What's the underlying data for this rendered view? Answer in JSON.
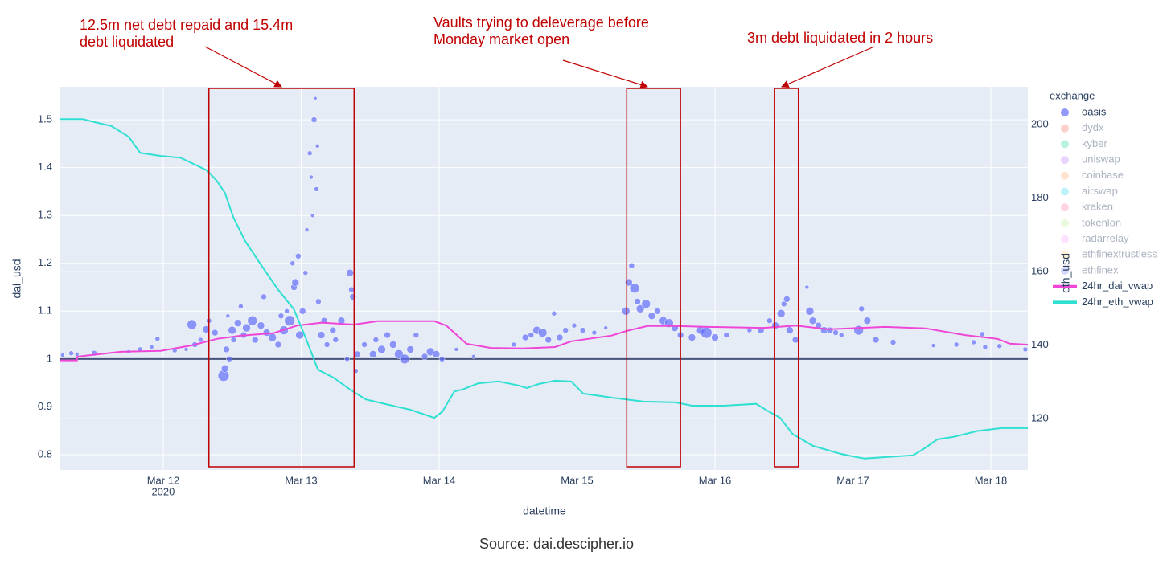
{
  "chart_data": {
    "type": "scatter",
    "x_label": "datetime",
    "y_label": "dai_usd",
    "y2_label": "eth_usd",
    "legend_title": "exchange",
    "legend_position": "right",
    "source": "Source: dai.descipher.io",
    "x_axis_year": "2020",
    "grid": true,
    "background": "#e5ecf6",
    "xlim": [
      "2020-03-11T06:06",
      "2020-03-18T06:26"
    ],
    "xticks": [
      {
        "value": "2020-03-12T00:00",
        "label": "Mar 12"
      },
      {
        "value": "2020-03-13T00:00",
        "label": "Mar 13"
      },
      {
        "value": "2020-03-14T00:00",
        "label": "Mar 14"
      },
      {
        "value": "2020-03-15T00:00",
        "label": "Mar 15"
      },
      {
        "value": "2020-03-16T00:00",
        "label": "Mar 16"
      },
      {
        "value": "2020-03-17T00:00",
        "label": "Mar 17"
      },
      {
        "value": "2020-03-18T00:00",
        "label": "Mar 18"
      }
    ],
    "ylim": [
      0.768,
      1.569
    ],
    "yticks": [
      0.8,
      0.9,
      1,
      1.1,
      1.2,
      1.3,
      1.4,
      1.5
    ],
    "y2lim": [
      106,
      210.3
    ],
    "y2ticks": [
      120,
      140,
      160,
      180,
      200
    ],
    "hline": {
      "y": 1,
      "color": "#46527a"
    },
    "annotations": [
      {
        "lines": [
          "12.5m net debt repaid and 15.4m",
          "debt liquidated"
        ],
        "x0": "2020-03-12T07:57",
        "x1": "2020-03-13T09:13",
        "color": "#c00000"
      },
      {
        "lines": [
          "Vaults trying to deleverage before",
          "Monday market open"
        ],
        "x0": "2020-03-15T08:39",
        "x1": "2020-03-15T18:00",
        "color": "#c00000"
      },
      {
        "lines": [
          "3m debt liquidated in 2 hours"
        ],
        "x0": "2020-03-16T10:20",
        "x1": "2020-03-16T14:31",
        "color": "#c00000"
      }
    ],
    "series": [
      {
        "name": "oasis",
        "mode": "markers",
        "color": "#636efa",
        "visible": true,
        "x": [
          "2020-03-11T06:30",
          "2020-03-11T08:00",
          "2020-03-11T09:00",
          "2020-03-11T12:00",
          "2020-03-11T18:00",
          "2020-03-11T20:00",
          "2020-03-11T22:00",
          "2020-03-11T23:00",
          "2020-03-12T02:00",
          "2020-03-12T04:00",
          "2020-03-12T05:00",
          "2020-03-12T05:30",
          "2020-03-12T06:30",
          "2020-03-12T07:30",
          "2020-03-12T08:00",
          "2020-03-12T09:00",
          "2020-03-12T10:30",
          "2020-03-12T10:45",
          "2020-03-12T11:00",
          "2020-03-12T11:15",
          "2020-03-12T11:30",
          "2020-03-12T12:00",
          "2020-03-12T12:15",
          "2020-03-12T13:00",
          "2020-03-12T13:30",
          "2020-03-12T14:00",
          "2020-03-12T14:30",
          "2020-03-12T15:30",
          "2020-03-12T16:00",
          "2020-03-12T17:00",
          "2020-03-12T17:30",
          "2020-03-12T18:00",
          "2020-03-12T19:00",
          "2020-03-12T20:00",
          "2020-03-12T20:30",
          "2020-03-12T21:00",
          "2020-03-12T21:30",
          "2020-03-12T22:00",
          "2020-03-12T22:30",
          "2020-03-12T22:45",
          "2020-03-12T23:00",
          "2020-03-12T23:30",
          "2020-03-12T23:45",
          "2020-03-13T00:15",
          "2020-03-13T00:45",
          "2020-03-13T01:00",
          "2020-03-13T01:30",
          "2020-03-13T01:45",
          "2020-03-13T02:00",
          "2020-03-13T02:15",
          "2020-03-13T02:30",
          "2020-03-13T02:40",
          "2020-03-13T02:50",
          "2020-03-13T03:00",
          "2020-03-13T03:30",
          "2020-03-13T04:00",
          "2020-03-13T04:30",
          "2020-03-13T05:30",
          "2020-03-13T06:00",
          "2020-03-13T07:00",
          "2020-03-13T08:00",
          "2020-03-13T08:30",
          "2020-03-13T08:45",
          "2020-03-13T09:00",
          "2020-03-13T09:30",
          "2020-03-13T09:45",
          "2020-03-13T11:00",
          "2020-03-13T12:30",
          "2020-03-13T13:00",
          "2020-03-13T14:00",
          "2020-03-13T15:00",
          "2020-03-13T16:00",
          "2020-03-13T17:00",
          "2020-03-13T18:00",
          "2020-03-13T19:00",
          "2020-03-13T20:00",
          "2020-03-13T21:30",
          "2020-03-13T22:30",
          "2020-03-13T23:30",
          "2020-03-14T00:30",
          "2020-03-14T03:00",
          "2020-03-14T06:00",
          "2020-03-14T13:00",
          "2020-03-14T15:00",
          "2020-03-14T16:00",
          "2020-03-14T17:00",
          "2020-03-14T18:00",
          "2020-03-14T19:00",
          "2020-03-14T20:00",
          "2020-03-14T21:00",
          "2020-03-14T22:00",
          "2020-03-14T23:30",
          "2020-03-15T01:00",
          "2020-03-15T03:00",
          "2020-03-15T05:00",
          "2020-03-15T08:30",
          "2020-03-15T09:00",
          "2020-03-15T09:30",
          "2020-03-15T10:00",
          "2020-03-15T10:30",
          "2020-03-15T11:00",
          "2020-03-15T12:00",
          "2020-03-15T13:00",
          "2020-03-15T14:00",
          "2020-03-15T15:00",
          "2020-03-15T16:00",
          "2020-03-15T17:00",
          "2020-03-15T18:00",
          "2020-03-15T20:00",
          "2020-03-15T21:30",
          "2020-03-15T22:30",
          "2020-03-16T00:00",
          "2020-03-16T02:00",
          "2020-03-16T06:00",
          "2020-03-16T08:00",
          "2020-03-16T09:30",
          "2020-03-16T10:30",
          "2020-03-16T11:30",
          "2020-03-16T12:00",
          "2020-03-16T12:30",
          "2020-03-16T13:00",
          "2020-03-16T14:00",
          "2020-03-16T16:00",
          "2020-03-16T16:30",
          "2020-03-16T17:00",
          "2020-03-16T18:00",
          "2020-03-16T19:00",
          "2020-03-16T20:00",
          "2020-03-16T21:00",
          "2020-03-16T22:00",
          "2020-03-17T01:00",
          "2020-03-17T01:30",
          "2020-03-17T02:30",
          "2020-03-17T04:00",
          "2020-03-17T07:00",
          "2020-03-17T14:00",
          "2020-03-17T18:00",
          "2020-03-17T21:00",
          "2020-03-17T22:30",
          "2020-03-17T23:00",
          "2020-03-18T01:30",
          "2020-03-18T06:00"
        ],
        "values": [
          1.008,
          1.012,
          1.01,
          1.012,
          1.015,
          1.02,
          1.025,
          1.042,
          1.018,
          1.02,
          1.072,
          1.03,
          1.04,
          1.062,
          1.08,
          1.055,
          0.965,
          0.98,
          1.02,
          1.09,
          1.0,
          1.06,
          1.04,
          1.075,
          1.11,
          1.05,
          1.065,
          1.08,
          1.04,
          1.07,
          1.13,
          1.055,
          1.045,
          1.03,
          1.09,
          1.06,
          1.1,
          1.08,
          1.2,
          1.15,
          1.16,
          1.215,
          1.05,
          1.1,
          1.18,
          1.27,
          1.43,
          1.38,
          1.3,
          1.5,
          1.545,
          1.355,
          1.445,
          1.12,
          1.05,
          1.08,
          1.03,
          1.06,
          1.04,
          1.08,
          1.0,
          1.18,
          1.145,
          1.13,
          0.975,
          1.01,
          1.03,
          1.01,
          1.04,
          1.02,
          1.05,
          1.03,
          1.01,
          1.0,
          1.02,
          1.05,
          1.005,
          1.015,
          1.01,
          1.0,
          1.02,
          1.005,
          1.03,
          1.045,
          1.05,
          1.06,
          1.055,
          1.04,
          1.095,
          1.045,
          1.06,
          1.07,
          1.06,
          1.055,
          1.065,
          1.1,
          1.16,
          1.195,
          1.148,
          1.12,
          1.105,
          1.115,
          1.09,
          1.1,
          1.08,
          1.075,
          1.065,
          1.05,
          1.045,
          1.06,
          1.055,
          1.045,
          1.05,
          1.06,
          1.06,
          1.08,
          1.07,
          1.095,
          1.115,
          1.125,
          1.06,
          1.04,
          1.15,
          1.1,
          1.08,
          1.07,
          1.06,
          1.06,
          1.055,
          1.05,
          1.06,
          1.105,
          1.08,
          1.04,
          1.035,
          1.028,
          1.03,
          1.035,
          1.052,
          1.025,
          1.027,
          1.02
        ],
        "sizes": [
          5,
          6,
          5,
          7,
          5,
          6,
          5,
          6,
          6,
          5,
          12,
          7,
          6,
          9,
          6,
          8,
          14,
          9,
          8,
          5,
          7,
          10,
          7,
          9,
          6,
          8,
          10,
          12,
          8,
          9,
          7,
          9,
          10,
          8,
          7,
          11,
          6,
          13,
          6,
          8,
          9,
          7,
          10,
          8,
          6,
          5,
          6,
          5,
          5,
          7,
          4,
          6,
          5,
          7,
          9,
          8,
          7,
          8,
          7,
          9,
          6,
          9,
          7,
          8,
          6,
          8,
          7,
          9,
          7,
          10,
          8,
          9,
          11,
          12,
          9,
          7,
          8,
          10,
          9,
          7,
          5,
          5,
          6,
          8,
          7,
          10,
          11,
          8,
          6,
          8,
          7,
          6,
          7,
          6,
          5,
          10,
          9,
          7,
          12,
          8,
          10,
          11,
          9,
          8,
          10,
          11,
          9,
          8,
          9,
          10,
          14,
          9,
          7,
          6,
          8,
          7,
          9,
          10,
          7,
          8,
          9,
          8,
          5,
          10,
          9,
          8,
          9,
          8,
          7,
          6,
          12,
          7,
          9,
          8,
          7,
          5,
          6,
          6,
          6,
          6,
          6,
          6
        ]
      },
      {
        "name": "dydx",
        "mode": "markers",
        "color": "#ef553b",
        "visible": false,
        "x": [],
        "values": []
      },
      {
        "name": "kyber",
        "mode": "markers",
        "color": "#00cc96",
        "visible": false,
        "x": [],
        "values": []
      },
      {
        "name": "uniswap",
        "mode": "markers",
        "color": "#ab63fa",
        "visible": false,
        "x": [],
        "values": []
      },
      {
        "name": "coinbase",
        "mode": "markers",
        "color": "#ffa15a",
        "visible": false,
        "x": [],
        "values": []
      },
      {
        "name": "airswap",
        "mode": "markers",
        "color": "#19d3f3",
        "visible": false,
        "x": [],
        "values": []
      },
      {
        "name": "kraken",
        "mode": "markers",
        "color": "#ff6692",
        "visible": false,
        "x": [],
        "values": []
      },
      {
        "name": "tokenlon",
        "mode": "markers",
        "color": "#b6e880",
        "visible": false,
        "x": [],
        "values": []
      },
      {
        "name": "radarrelay",
        "mode": "markers",
        "color": "#ff97ff",
        "visible": false,
        "x": [],
        "values": []
      },
      {
        "name": "ethfinextrustless",
        "mode": "markers",
        "color": "#fecb52",
        "visible": false,
        "x": [],
        "values": []
      },
      {
        "name": "ethfinex",
        "mode": "markers",
        "color": "#636efa",
        "visible": false,
        "x": [],
        "values": []
      },
      {
        "name": "24hr_dai_vwap",
        "mode": "lines",
        "color": "#f046d8",
        "visible": true,
        "x": [
          "2020-03-11T06:06",
          "2020-03-11T09:00",
          "2020-03-11T09:05",
          "2020-03-11T16:35",
          "2020-03-11T23:35",
          "2020-03-12T05:10",
          "2020-03-12T09:20",
          "2020-03-12T13:35",
          "2020-03-12T19:10",
          "2020-03-12T23:20",
          "2020-03-13T03:35",
          "2020-03-13T09:10",
          "2020-03-13T13:20",
          "2020-03-13T23:10",
          "2020-03-14T01:15",
          "2020-03-14T04:45",
          "2020-03-14T09:00",
          "2020-03-14T14:35",
          "2020-03-14T20:10",
          "2020-03-14T23:00",
          "2020-03-15T06:00",
          "2020-03-15T08:45",
          "2020-03-15T12:15",
          "2020-03-15T17:10",
          "2020-03-15T22:45",
          "2020-03-16T08:30",
          "2020-03-16T14:05",
          "2020-03-16T19:45",
          "2020-03-17T05:35",
          "2020-03-17T12:35",
          "2020-03-17T19:30",
          "2020-03-18T01:10",
          "2020-03-18T03:15",
          "2020-03-18T06:26"
        ],
        "values": [
          0.997,
          0.997,
          1.005,
          1.015,
          1.017,
          1.029,
          1.042,
          1.049,
          1.054,
          1.07,
          1.076,
          1.072,
          1.079,
          1.079,
          1.07,
          1.032,
          1.023,
          1.022,
          1.025,
          1.037,
          1.049,
          1.059,
          1.069,
          1.069,
          1.067,
          1.065,
          1.07,
          1.062,
          1.067,
          1.064,
          1.05,
          1.042,
          1.032,
          1.03
        ]
      },
      {
        "name": "24hr_eth_vwap",
        "mode": "lines",
        "color": "#2fe0d2",
        "visible": true,
        "axis": "y2",
        "x": [
          "2020-03-11T06:06",
          "2020-03-11T10:00",
          "2020-03-11T12:00",
          "2020-03-11T15:00",
          "2020-03-11T18:00",
          "2020-03-11T20:00",
          "2020-03-11T23:30",
          "2020-03-12T03:00",
          "2020-03-12T05:00",
          "2020-03-12T07:40",
          "2020-03-12T09:20",
          "2020-03-12T10:45",
          "2020-03-12T12:10",
          "2020-03-12T14:15",
          "2020-03-12T17:05",
          "2020-03-12T19:55",
          "2020-03-12T22:45",
          "2020-03-13T00:45",
          "2020-03-13T02:55",
          "2020-03-13T05:40",
          "2020-03-13T08:30",
          "2020-03-13T11:15",
          "2020-03-13T14:45",
          "2020-03-13T19:00",
          "2020-03-13T23:10",
          "2020-03-14T00:35",
          "2020-03-14T02:40",
          "2020-03-14T04:05",
          "2020-03-14T06:50",
          "2020-03-14T10:20",
          "2020-03-14T13:50",
          "2020-03-14T15:15",
          "2020-03-14T17:20",
          "2020-03-14T20:10",
          "2020-03-14T23:00",
          "2020-03-15T01:05",
          "2020-03-15T06:00",
          "2020-03-15T11:35",
          "2020-03-15T17:10",
          "2020-03-15T20:00",
          "2020-03-16T01:35",
          "2020-03-16T07:10",
          "2020-03-16T09:15",
          "2020-03-16T11:20",
          "2020-03-16T13:30",
          "2020-03-16T17:00",
          "2020-03-16T21:50",
          "2020-03-17T00:00",
          "2020-03-17T02:05",
          "2020-03-17T05:35",
          "2020-03-17T10:30",
          "2020-03-17T12:35",
          "2020-03-17T14:40",
          "2020-03-17T17:30",
          "2020-03-17T21:40",
          "2020-03-18T01:50",
          "2020-03-18T06:26"
        ],
        "values": [
          201.5,
          201.5,
          200.7,
          199.6,
          196.7,
          192.3,
          191.5,
          191.0,
          189.5,
          187.5,
          184.7,
          181.4,
          174.9,
          168.3,
          161.7,
          155.2,
          149.7,
          142.1,
          133.3,
          131.1,
          127.9,
          125.2,
          123.9,
          122.4,
          120.2,
          121.9,
          127.4,
          127.9,
          129.6,
          130.1,
          129.0,
          128.3,
          129.4,
          130.3,
          130.1,
          126.8,
          125.7,
          124.6,
          124.4,
          123.5,
          123.5,
          124.0,
          122.0,
          120.2,
          115.8,
          112.6,
          110.4,
          109.7,
          109.1,
          109.5,
          110.0,
          112.0,
          114.3,
          115.0,
          116.6,
          117.4,
          117.4
        ]
      }
    ]
  }
}
